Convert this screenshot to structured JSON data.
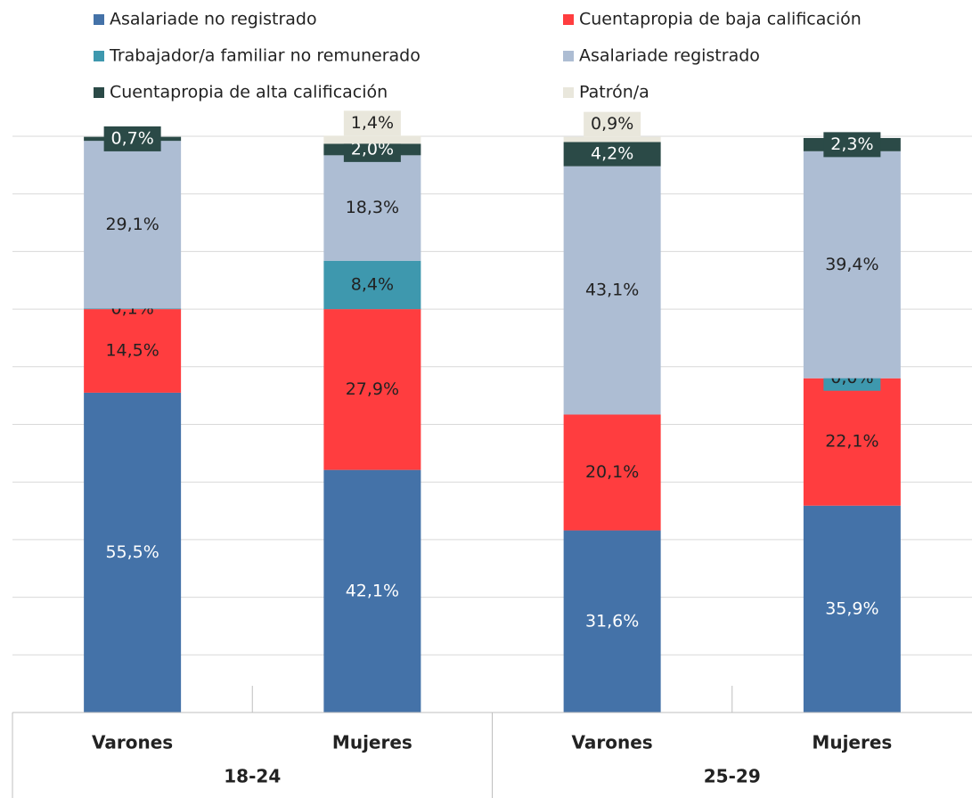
{
  "chart_data": {
    "type": "stacked_bar",
    "groups": [
      {
        "name": "18-24",
        "categories": [
          "Varones",
          "Mujeres"
        ]
      },
      {
        "name": "25-29",
        "categories": [
          "Varones",
          "Mujeres"
        ]
      }
    ],
    "series": [
      {
        "name": "Asalariade no registrado",
        "color": "#4472a8",
        "values": [
          55.5,
          42.1,
          31.6,
          35.9
        ],
        "value_labels": [
          "55,5%",
          "42,1%",
          "31,6%",
          "35,9%"
        ]
      },
      {
        "name": "Cuentapropia de baja calificación",
        "color": "#ff3d3f",
        "values": [
          14.5,
          27.9,
          20.1,
          22.1
        ],
        "value_labels": [
          "14,5%",
          "27,9%",
          "20,1%",
          "22,1%"
        ]
      },
      {
        "name": "Trabajador/a familiar no remunerado",
        "color": "#3e98ae",
        "values": [
          0.1,
          8.4,
          0,
          0.0
        ],
        "value_labels": [
          "0,1%",
          "8,4%",
          null,
          "0,0%"
        ]
      },
      {
        "name": "Asalariade registrado",
        "color": "#adbdd3",
        "values": [
          29.1,
          18.3,
          43.1,
          39.4
        ],
        "value_labels": [
          "29,1%",
          "18,3%",
          "43,1%",
          "39,4%"
        ]
      },
      {
        "name": "Cuentapropia de alta calificación",
        "color": "#2b4a47",
        "values": [
          0.7,
          2.0,
          4.2,
          2.3
        ],
        "value_labels": [
          "0,7%",
          "2,0%",
          "4,2%",
          "2,3%"
        ]
      },
      {
        "name": "Patrón/a",
        "color": "#e9e7dc",
        "values": [
          0,
          1.4,
          0.9,
          0
        ],
        "value_labels": [
          null,
          "1,4%",
          "0,9%",
          null
        ]
      }
    ],
    "ylim": [
      0,
      100
    ],
    "yticks": [
      0,
      10,
      20,
      30,
      40,
      50,
      60,
      70,
      80,
      90,
      100
    ],
    "grid": true,
    "legend": "top"
  }
}
